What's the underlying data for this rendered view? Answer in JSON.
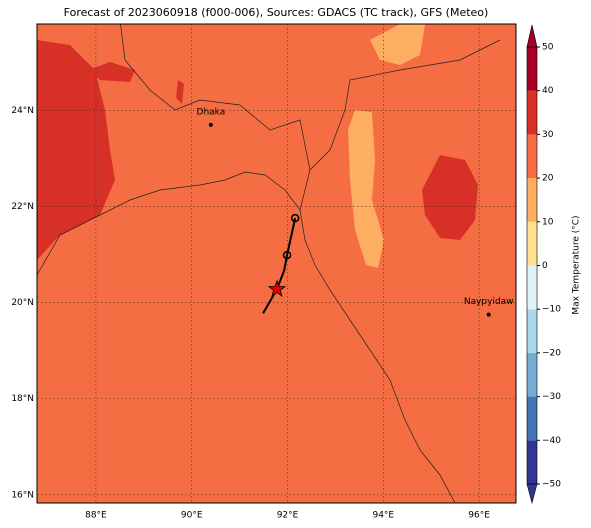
{
  "title": "Forecast of 2023060918 (f000-006), Sources: GDACS (TC track), GFS (Meteo)",
  "map": {
    "lonlim": [
      86.77,
      96.77
    ],
    "latlim": [
      15.83,
      25.8
    ],
    "lon_ticks": [
      {
        "value": 88,
        "label": "88°E"
      },
      {
        "value": 90,
        "label": "90°E"
      },
      {
        "value": 92,
        "label": "92°E"
      },
      {
        "value": 94,
        "label": "94°E"
      },
      {
        "value": 96,
        "label": "96°E"
      }
    ],
    "lat_ticks": [
      {
        "value": 16,
        "label": "16°N"
      },
      {
        "value": 18,
        "label": "18°N"
      },
      {
        "value": 20,
        "label": "20°N"
      },
      {
        "value": 22,
        "label": "22°N"
      },
      {
        "value": 24,
        "label": "24°N"
      }
    ],
    "cities": [
      {
        "name": "Dhaka",
        "lon": 90.4,
        "lat": 23.7
      },
      {
        "name": "Naypyidaw",
        "lon": 96.2,
        "lat": 19.75
      }
    ],
    "track": [
      {
        "lon": 91.49,
        "lat": 19.78
      },
      {
        "lon": 91.78,
        "lat": 20.28
      },
      {
        "lon": 91.93,
        "lat": 20.67
      },
      {
        "lon": 91.99,
        "lat": 20.99
      },
      {
        "lon": 92.16,
        "lat": 21.76
      }
    ],
    "current_position": {
      "lon": 91.78,
      "lat": 20.28
    }
  },
  "colorbar": {
    "label": "Max Temperature (°C)",
    "ticks": [
      {
        "value": -50,
        "label": "−50"
      },
      {
        "value": -40,
        "label": "−40"
      },
      {
        "value": -30,
        "label": "−30"
      },
      {
        "value": -20,
        "label": "−20"
      },
      {
        "value": -10,
        "label": "−10"
      },
      0,
      10,
      20,
      30,
      40,
      50
    ],
    "colors": [
      "#313695",
      "#4575b4",
      "#74add1",
      "#abd9e9",
      "#e0f3f8",
      "#fee090",
      "#fdae61",
      "#f46d43",
      "#d73027",
      "#a50026"
    ]
  }
}
